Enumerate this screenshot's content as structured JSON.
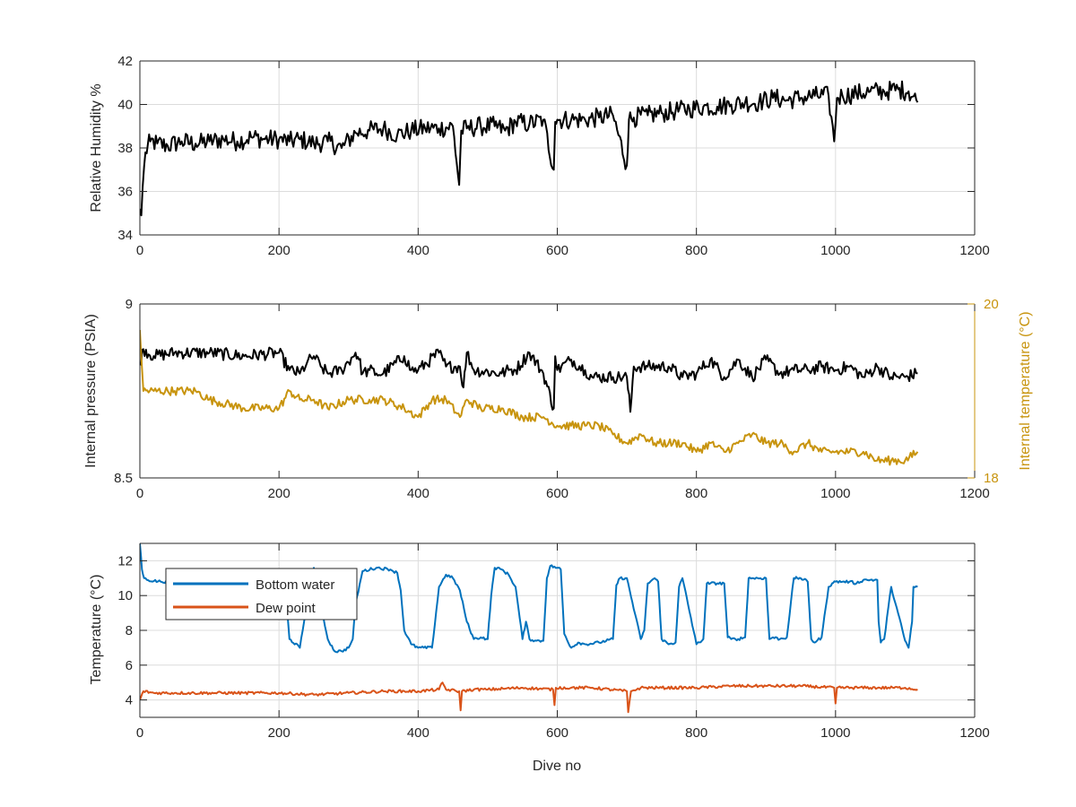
{
  "chart_data": [
    {
      "type": "line",
      "ylabel": "Relative Humidity %",
      "xlabel": "",
      "xlim": [
        0,
        1200
      ],
      "ylim": [
        34,
        42
      ],
      "xticks": [
        "0",
        "200",
        "400",
        "600",
        "800",
        "1000",
        "1200"
      ],
      "yticks": [
        "34",
        "36",
        "38",
        "40",
        "42"
      ],
      "grid": true,
      "series": [
        {
          "name": "",
          "color": "#000000",
          "x": [
            0,
            2,
            4,
            8,
            15,
            25,
            40,
            60,
            80,
            100,
            120,
            140,
            160,
            180,
            200,
            215,
            230,
            250,
            270,
            290,
            310,
            330,
            350,
            370,
            390,
            410,
            430,
            450,
            459,
            462,
            470,
            490,
            510,
            525,
            540,
            560,
            580,
            595,
            597,
            600,
            620,
            640,
            660,
            680,
            700,
            703,
            710,
            730,
            750,
            770,
            790,
            810,
            830,
            850,
            870,
            890,
            910,
            930,
            950,
            970,
            990,
            998,
            1002,
            1010,
            1030,
            1050,
            1070,
            1090,
            1105,
            1118
          ],
          "y": [
            35.2,
            34.9,
            36.2,
            37.8,
            38.3,
            38.2,
            38.1,
            38.3,
            38.2,
            38.3,
            38.4,
            38.3,
            38.5,
            38.4,
            38.4,
            38.3,
            38.4,
            38.2,
            38.3,
            38.0,
            38.7,
            38.8,
            38.9,
            38.6,
            38.8,
            38.9,
            38.9,
            39.0,
            36.3,
            38.8,
            38.9,
            39.0,
            39.0,
            38.8,
            39.2,
            39.1,
            39.3,
            37.0,
            39.2,
            39.3,
            39.3,
            39.3,
            39.4,
            39.5,
            37.2,
            39.3,
            39.4,
            39.5,
            39.6,
            39.7,
            39.8,
            39.9,
            39.9,
            40.0,
            40.1,
            40.1,
            40.3,
            40.2,
            40.3,
            40.4,
            40.4,
            38.3,
            40.3,
            40.4,
            40.5,
            40.6,
            40.6,
            40.7,
            40.6,
            40.1
          ]
        }
      ]
    },
    {
      "type": "line",
      "ylabel": "Internal pressure (PSIA)",
      "ylabel_right": "Internal temperature (°C)",
      "xlabel": "",
      "xlim": [
        0,
        1200
      ],
      "ylim": [
        8.5,
        9
      ],
      "ylim_right": [
        18,
        20
      ],
      "xticks": [
        "0",
        "200",
        "400",
        "600",
        "800",
        "1000",
        "1200"
      ],
      "yticks": [
        "8.5",
        "9"
      ],
      "yticks_right": [
        "18",
        "20"
      ],
      "grid": false,
      "series": [
        {
          "name": "",
          "axis": "left",
          "color": "#000000",
          "x": [
            0,
            5,
            20,
            50,
            100,
            150,
            200,
            215,
            230,
            240,
            250,
            260,
            270,
            290,
            310,
            315,
            320,
            330,
            340,
            350,
            380,
            390,
            400,
            430,
            440,
            460,
            465,
            470,
            480,
            520,
            530,
            540,
            560,
            580,
            595,
            597,
            600,
            620,
            640,
            650,
            680,
            700,
            705,
            710,
            730,
            760,
            780,
            800,
            820,
            840,
            860,
            880,
            900,
            920,
            940,
            960,
            980,
            1000,
            1020,
            1040,
            1060,
            1080,
            1100,
            1118
          ],
          "y": [
            8.83,
            8.87,
            8.85,
            8.86,
            8.86,
            8.85,
            8.86,
            8.81,
            8.8,
            8.83,
            8.85,
            8.82,
            8.8,
            8.81,
            8.86,
            8.84,
            8.8,
            8.81,
            8.8,
            8.8,
            8.85,
            8.81,
            8.81,
            8.86,
            8.82,
            8.82,
            8.76,
            8.86,
            8.81,
            8.8,
            8.81,
            8.81,
            8.86,
            8.8,
            8.7,
            8.85,
            8.81,
            8.84,
            8.81,
            8.79,
            8.79,
            8.79,
            8.69,
            8.82,
            8.82,
            8.82,
            8.79,
            8.8,
            8.84,
            8.79,
            8.84,
            8.79,
            8.84,
            8.8,
            8.81,
            8.81,
            8.82,
            8.81,
            8.82,
            8.79,
            8.82,
            8.79,
            8.79,
            8.8
          ]
        },
        {
          "name": "",
          "axis": "right",
          "color": "#C8940E",
          "x": [
            0,
            5,
            20,
            50,
            80,
            100,
            150,
            200,
            215,
            230,
            250,
            270,
            300,
            330,
            350,
            380,
            400,
            420,
            440,
            460,
            470,
            490,
            520,
            550,
            580,
            600,
            620,
            640,
            660,
            680,
            700,
            720,
            740,
            760,
            780,
            800,
            820,
            840,
            860,
            880,
            900,
            920,
            940,
            960,
            980,
            1000,
            1020,
            1040,
            1060,
            1080,
            1100,
            1118
          ],
          "y": [
            19.7,
            19.0,
            19.0,
            19.0,
            19.0,
            18.9,
            18.8,
            18.8,
            19.0,
            18.9,
            18.9,
            18.8,
            18.9,
            18.9,
            18.9,
            18.8,
            18.7,
            18.9,
            18.9,
            18.7,
            18.9,
            18.8,
            18.8,
            18.7,
            18.7,
            18.6,
            18.6,
            18.6,
            18.6,
            18.5,
            18.4,
            18.5,
            18.4,
            18.4,
            18.4,
            18.3,
            18.4,
            18.3,
            18.4,
            18.5,
            18.4,
            18.4,
            18.3,
            18.4,
            18.3,
            18.3,
            18.3,
            18.3,
            18.2,
            18.2,
            18.2,
            18.3
          ]
        }
      ]
    },
    {
      "type": "line",
      "ylabel": "Temperature (°C)",
      "xlabel": "Dive no",
      "xlim": [
        0,
        1200
      ],
      "ylim": [
        3,
        13
      ],
      "xticks": [
        "0",
        "200",
        "400",
        "600",
        "800",
        "1000",
        "1200"
      ],
      "yticks": [
        "4",
        "6",
        "8",
        "10",
        "12"
      ],
      "grid": true,
      "legend_position": "top-left",
      "series": [
        {
          "name": "Bottom water",
          "color": "#0072BD",
          "x": [
            0,
            3,
            6,
            10,
            30,
            60,
            100,
            150,
            200,
            210,
            215,
            230,
            240,
            250,
            260,
            270,
            280,
            290,
            300,
            306,
            310,
            320,
            340,
            360,
            370,
            375,
            380,
            390,
            400,
            420,
            430,
            440,
            450,
            460,
            470,
            480,
            490,
            500,
            505,
            510,
            520,
            530,
            540,
            550,
            555,
            560,
            570,
            580,
            585,
            590,
            600,
            605,
            610,
            620,
            630,
            640,
            660,
            680,
            685,
            690,
            700,
            720,
            725,
            730,
            740,
            745,
            750,
            760,
            770,
            775,
            780,
            800,
            810,
            815,
            820,
            840,
            845,
            850,
            860,
            870,
            875,
            880,
            900,
            905,
            910,
            920,
            930,
            940,
            945,
            950,
            960,
            965,
            970,
            980,
            990,
            995,
            1000,
            1010,
            1020,
            1030,
            1040,
            1050,
            1060,
            1062,
            1065,
            1070,
            1080,
            1100,
            1105,
            1110,
            1112,
            1118
          ],
          "y": [
            13.0,
            11.5,
            11.0,
            10.9,
            10.8,
            10.8,
            10.7,
            10.6,
            10.7,
            10.0,
            7.5,
            7.0,
            9.5,
            11.6,
            9.5,
            7.5,
            6.8,
            6.8,
            7.0,
            7.5,
            9.5,
            11.4,
            11.6,
            11.5,
            11.3,
            10.3,
            8.0,
            7.2,
            7.0,
            7.0,
            10.5,
            11.2,
            11.0,
            10.3,
            8.5,
            7.5,
            7.6,
            7.5,
            10.0,
            11.6,
            11.5,
            11.2,
            10.5,
            7.5,
            8.5,
            7.5,
            7.4,
            7.4,
            11.0,
            11.7,
            11.6,
            11.5,
            7.8,
            7.0,
            7.3,
            7.2,
            7.3,
            7.5,
            10.6,
            11.0,
            11.0,
            7.5,
            8.0,
            10.7,
            11.0,
            10.8,
            7.5,
            7.2,
            7.3,
            10.5,
            11.0,
            7.2,
            7.5,
            10.7,
            10.7,
            10.7,
            7.6,
            7.5,
            7.5,
            7.6,
            11.0,
            11.0,
            11.0,
            7.5,
            7.6,
            7.5,
            7.6,
            11.0,
            11.0,
            11.0,
            10.8,
            7.5,
            7.3,
            7.6,
            10.5,
            10.7,
            10.8,
            10.8,
            10.8,
            10.7,
            10.9,
            10.9,
            10.9,
            8.5,
            7.3,
            7.5,
            10.5,
            7.4,
            7.0,
            8.5,
            10.5,
            10.5
          ]
        },
        {
          "name": "Dew point",
          "color": "#D95319",
          "x": [
            0,
            5,
            20,
            50,
            100,
            150,
            200,
            250,
            300,
            350,
            400,
            430,
            435,
            440,
            459,
            461,
            463,
            480,
            500,
            550,
            594,
            596,
            598,
            620,
            650,
            700,
            702,
            706,
            720,
            750,
            800,
            850,
            900,
            950,
            998,
            1000,
            1002,
            1050,
            1100,
            1118
          ],
          "y": [
            4.0,
            4.5,
            4.4,
            4.4,
            4.4,
            4.4,
            4.4,
            4.3,
            4.4,
            4.5,
            4.5,
            4.6,
            5.0,
            4.6,
            4.5,
            3.4,
            4.5,
            4.6,
            4.6,
            4.7,
            4.6,
            3.7,
            4.7,
            4.7,
            4.7,
            4.5,
            3.3,
            4.5,
            4.7,
            4.7,
            4.7,
            4.8,
            4.8,
            4.8,
            4.7,
            3.8,
            4.7,
            4.7,
            4.7,
            4.6
          ]
        }
      ]
    }
  ]
}
